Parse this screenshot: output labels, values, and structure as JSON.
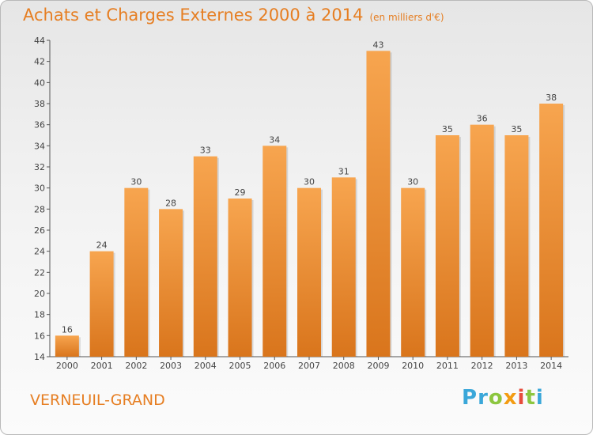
{
  "header": {
    "title": "Achats et Charges Externes 2000 à 2014",
    "unit": "(en milliers d'€)"
  },
  "footer": {
    "town": "VERNEUIL-GRAND",
    "brand_letters": [
      {
        "char": "P",
        "color": "#3aa7d9"
      },
      {
        "char": "r",
        "color": "#3aa7d9"
      },
      {
        "char": "o",
        "color": "#8cc63f"
      },
      {
        "char": "x",
        "color": "#f39c12"
      },
      {
        "char": "i",
        "color": "#e74c3c"
      },
      {
        "char": "t",
        "color": "#8cc63f"
      },
      {
        "char": "i",
        "color": "#3aa7d9"
      }
    ]
  },
  "colors": {
    "bar_top": "#f7a54f",
    "bar_bottom": "#d9751c",
    "accent": "#e67e22"
  },
  "chart_data": {
    "type": "bar",
    "title": "Achats et Charges Externes 2000 à 2014",
    "subtitle": "(en milliers d'€)",
    "xlabel": "",
    "ylabel": "",
    "categories": [
      "2000",
      "2001",
      "2002",
      "2003",
      "2004",
      "2005",
      "2006",
      "2007",
      "2008",
      "2009",
      "2010",
      "2011",
      "2012",
      "2013",
      "2014"
    ],
    "values": [
      16,
      24,
      30,
      28,
      33,
      29,
      34,
      30,
      31,
      43,
      30,
      35,
      36,
      35,
      38
    ],
    "ylim": [
      14,
      44
    ],
    "yticks": [
      14,
      16,
      18,
      20,
      22,
      24,
      26,
      28,
      30,
      32,
      34,
      36,
      38,
      40,
      42,
      44
    ],
    "grid": false,
    "legend": "none"
  }
}
